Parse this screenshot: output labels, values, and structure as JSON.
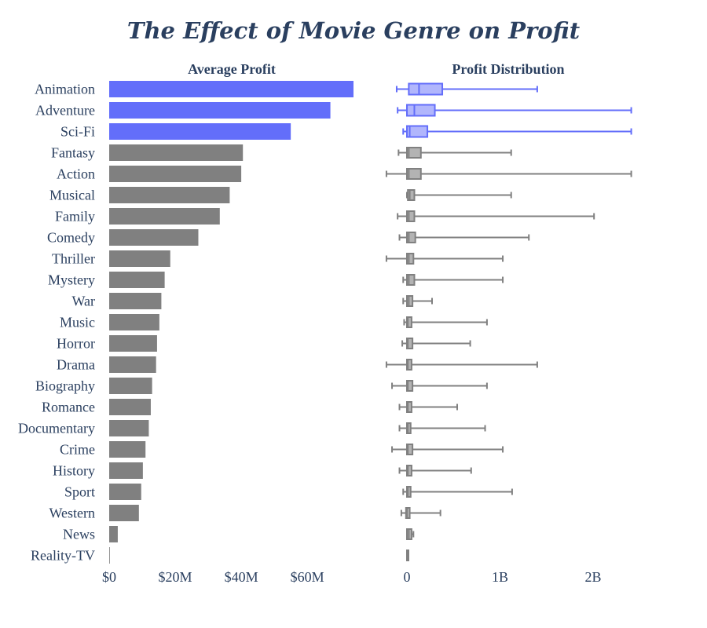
{
  "chart_data": {
    "title": "The Effect of Movie Genre on Profit",
    "highlight_color": "#636efa",
    "highlight_box_fill": "#b1b6fc",
    "default_color": "#808080",
    "default_box_fill": "#b3b3b3",
    "categories": [
      "Animation",
      "Adventure",
      "Sci-Fi",
      "Fantasy",
      "Action",
      "Musical",
      "Family",
      "Comedy",
      "Thriller",
      "Mystery",
      "War",
      "Music",
      "Horror",
      "Drama",
      "Biography",
      "Romance",
      "Documentary",
      "Crime",
      "History",
      "Sport",
      "Western",
      "News",
      "Reality-TV"
    ],
    "highlighted": [
      "Animation",
      "Adventure",
      "Sci-Fi"
    ],
    "bar_chart": {
      "type": "bar",
      "orientation": "horizontal",
      "subtitle": "Average Profit",
      "x_range": [
        0,
        75
      ],
      "x_ticks": [
        {
          "value": 0,
          "label": "$0"
        },
        {
          "value": 20,
          "label": "$20M"
        },
        {
          "value": 40,
          "label": "$40M"
        },
        {
          "value": 60,
          "label": "$60M"
        }
      ],
      "values": [
        74,
        67,
        55,
        40.5,
        40,
        36.5,
        33.5,
        27,
        18.5,
        16.8,
        15.8,
        15.2,
        14.5,
        14.2,
        13,
        12.6,
        12,
        11,
        10.2,
        9.7,
        9,
        2.6,
        0.2
      ]
    },
    "box_chart": {
      "type": "box",
      "orientation": "horizontal",
      "subtitle": "Profit Distribution",
      "x_range": [
        -0.25,
        2.6
      ],
      "x_ticks": [
        {
          "value": 0,
          "label": "0"
        },
        {
          "value": 1,
          "label": "1B"
        },
        {
          "value": 2,
          "label": "2B"
        }
      ],
      "boxes": [
        {
          "min": -0.11,
          "q1": 0.02,
          "median": 0.13,
          "q3": 0.38,
          "max": 1.4
        },
        {
          "min": -0.1,
          "q1": 0.0,
          "median": 0.08,
          "q3": 0.3,
          "max": 2.41
        },
        {
          "min": -0.04,
          "q1": 0.0,
          "median": 0.03,
          "q3": 0.22,
          "max": 2.41
        },
        {
          "min": -0.09,
          "q1": 0.0,
          "median": 0.02,
          "q3": 0.15,
          "max": 1.12
        },
        {
          "min": -0.22,
          "q1": 0.0,
          "median": 0.02,
          "q3": 0.15,
          "max": 2.41
        },
        {
          "min": 0.0,
          "q1": 0.01,
          "median": 0.03,
          "q3": 0.08,
          "max": 1.12
        },
        {
          "min": -0.1,
          "q1": 0.0,
          "median": 0.02,
          "q3": 0.08,
          "max": 2.01
        },
        {
          "min": -0.08,
          "q1": 0.0,
          "median": 0.02,
          "q3": 0.09,
          "max": 1.31
        },
        {
          "min": -0.22,
          "q1": 0.0,
          "median": 0.02,
          "q3": 0.07,
          "max": 1.03
        },
        {
          "min": -0.04,
          "q1": 0.0,
          "median": 0.02,
          "q3": 0.08,
          "max": 1.03
        },
        {
          "min": -0.04,
          "q1": 0.0,
          "median": 0.02,
          "q3": 0.06,
          "max": 0.27
        },
        {
          "min": -0.03,
          "q1": 0.0,
          "median": 0.01,
          "q3": 0.05,
          "max": 0.86
        },
        {
          "min": -0.05,
          "q1": 0.0,
          "median": 0.01,
          "q3": 0.06,
          "max": 0.68
        },
        {
          "min": -0.22,
          "q1": 0.0,
          "median": 0.01,
          "q3": 0.05,
          "max": 1.4
        },
        {
          "min": -0.16,
          "q1": 0.0,
          "median": 0.01,
          "q3": 0.06,
          "max": 0.86
        },
        {
          "min": -0.08,
          "q1": 0.0,
          "median": 0.01,
          "q3": 0.05,
          "max": 0.54
        },
        {
          "min": -0.08,
          "q1": 0.0,
          "median": 0.01,
          "q3": 0.04,
          "max": 0.84
        },
        {
          "min": -0.16,
          "q1": 0.0,
          "median": 0.01,
          "q3": 0.06,
          "max": 1.03
        },
        {
          "min": -0.08,
          "q1": 0.0,
          "median": 0.01,
          "q3": 0.05,
          "max": 0.69
        },
        {
          "min": -0.04,
          "q1": 0.0,
          "median": 0.01,
          "q3": 0.04,
          "max": 1.13
        },
        {
          "min": -0.06,
          "q1": -0.01,
          "median": 0.0,
          "q3": 0.03,
          "max": 0.36
        },
        {
          "min": 0.0,
          "q1": 0.0,
          "median": 0.02,
          "q3": 0.05,
          "max": 0.07
        },
        {
          "min": 0.0,
          "q1": 0.0,
          "median": 0.0,
          "q3": 0.0,
          "max": 0.0
        }
      ]
    }
  }
}
